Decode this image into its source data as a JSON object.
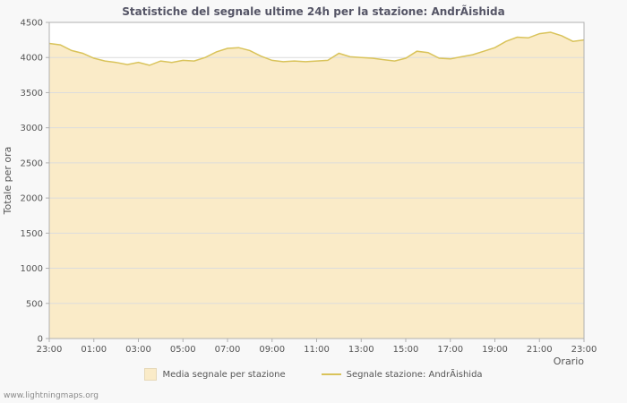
{
  "chart_data": {
    "type": "area",
    "title": "Statistiche del segnale ultime 24h per la stazione: AndrÃishida",
    "xlabel": "Orario",
    "ylabel": "Totale per ora",
    "ylim": [
      0,
      4500
    ],
    "ytick_step": 500,
    "grid": "horizontal",
    "legend_position": "bottom",
    "x_tick_labels": [
      "23:00",
      "01:00",
      "03:00",
      "05:00",
      "07:00",
      "09:00",
      "11:00",
      "13:00",
      "15:00",
      "17:00",
      "19:00",
      "21:00",
      "23:00"
    ],
    "x": [
      "23:00",
      "23:30",
      "00:00",
      "00:30",
      "01:00",
      "01:30",
      "02:00",
      "02:30",
      "03:00",
      "03:30",
      "04:00",
      "04:30",
      "05:00",
      "05:30",
      "06:00",
      "06:30",
      "07:00",
      "07:30",
      "08:00",
      "08:30",
      "09:00",
      "09:30",
      "10:00",
      "10:30",
      "11:00",
      "11:30",
      "12:00",
      "12:30",
      "13:00",
      "13:30",
      "14:00",
      "14:30",
      "15:00",
      "15:30",
      "16:00",
      "16:30",
      "17:00",
      "17:30",
      "18:00",
      "18:30",
      "19:00",
      "19:30",
      "20:00",
      "20:30",
      "21:00",
      "21:30",
      "22:00",
      "22:30",
      "23:00"
    ],
    "values": [
      4200,
      4180,
      4100,
      4060,
      3990,
      3950,
      3930,
      3900,
      3930,
      3890,
      3950,
      3930,
      3960,
      3950,
      4000,
      4080,
      4130,
      4140,
      4100,
      4020,
      3960,
      3940,
      3950,
      3940,
      3950,
      3960,
      4060,
      4010,
      4000,
      3990,
      3970,
      3950,
      3990,
      4090,
      4070,
      3990,
      3980,
      4010,
      4040,
      4090,
      4140,
      4230,
      4290,
      4280,
      4340,
      4360,
      4310,
      4230,
      4250
    ],
    "legend": [
      {
        "label": "Media segnale per stazione",
        "swatch": "area",
        "color": "#faebc8"
      },
      {
        "label": "Segnale stazione: AndrÃishida",
        "swatch": "line",
        "color": "#d9c35a"
      }
    ]
  },
  "colors": {
    "page_bg": "#f8f8f8",
    "plot_bg": "#ffffff",
    "area_fill": "#faebc8",
    "line": "#d9c35a",
    "grid": "#dcdcdc",
    "plot_border": "#b0b0b0",
    "axis_text": "#555555",
    "title_text": "#555566"
  },
  "footer": {
    "watermark": "www.lightningmaps.org"
  }
}
